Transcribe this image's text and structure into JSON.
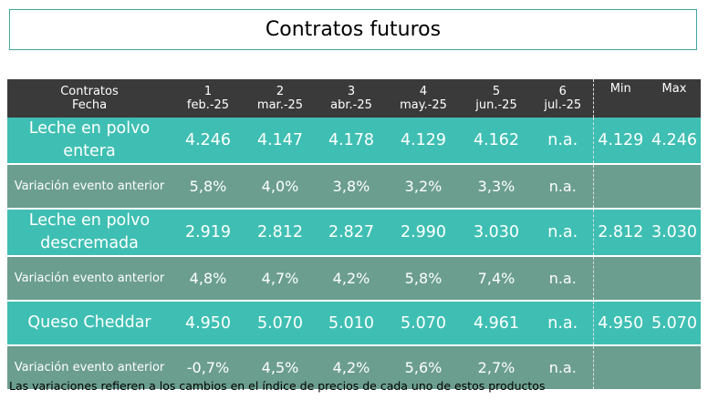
{
  "title": "Contratos futuros",
  "header": {
    "label_line1": "Contratos",
    "label_line2": "Fecha",
    "cols": [
      {
        "num": "1",
        "date": "feb.-25"
      },
      {
        "num": "2",
        "date": "mar.-25"
      },
      {
        "num": "3",
        "date": "abr.-25"
      },
      {
        "num": "4",
        "date": "may.-25"
      },
      {
        "num": "5",
        "date": "jun.-25"
      },
      {
        "num": "6",
        "date": "jul.-25"
      }
    ],
    "min": "Min",
    "max": "Max"
  },
  "rows": [
    {
      "label": "Leche en polvo entera",
      "values": [
        "4.246",
        "4.147",
        "4.178",
        "4.129",
        "4.162",
        "n.a."
      ],
      "min": "4.129",
      "max": "4.246"
    },
    {
      "label": "Variación evento anterior",
      "values": [
        "5,8%",
        "4,0%",
        "3,8%",
        "3,2%",
        "3,3%",
        "n.a."
      ],
      "min": "",
      "max": ""
    },
    {
      "label": "Leche en polvo descremada",
      "values": [
        "2.919",
        "2.812",
        "2.827",
        "2.990",
        "3.030",
        "n.a."
      ],
      "min": "2.812",
      "max": "3.030"
    },
    {
      "label": "Variación evento anterior",
      "values": [
        "4,8%",
        "4,7%",
        "4,2%",
        "5,8%",
        "7,4%",
        "n.a."
      ],
      "min": "",
      "max": ""
    },
    {
      "label": "Queso Cheddar",
      "values": [
        "4.950",
        "5.070",
        "5.010",
        "5.070",
        "4.961",
        "n.a."
      ],
      "min": "4.950",
      "max": "5.070"
    },
    {
      "label": "Variación evento anterior",
      "values": [
        "-0,7%",
        "4,5%",
        "4,2%",
        "5,6%",
        "2,7%",
        "n.a."
      ],
      "min": "",
      "max": ""
    }
  ],
  "footnote": "Las variaciones refieren a los cambios en el índice de precios de cada uno de estos productos"
}
